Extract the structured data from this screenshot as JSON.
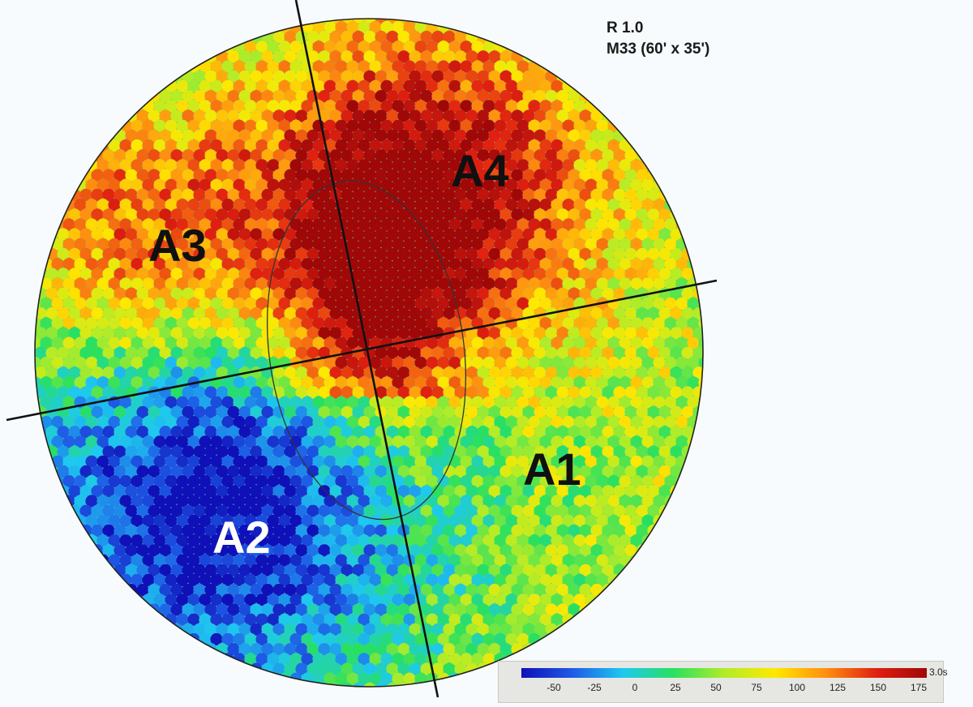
{
  "header": {
    "line1": "R 1.0",
    "line2": "M33 (60' x 35')"
  },
  "colorbar": {
    "unit_label": "3.0s",
    "min": -70,
    "max": 180,
    "ticks": [
      -50,
      -25,
      0,
      25,
      50,
      75,
      100,
      125,
      150,
      175
    ],
    "colors": [
      "#1010b8",
      "#1e5ae6",
      "#1ec8f0",
      "#28e060",
      "#b0ec28",
      "#ffe800",
      "#ff9010",
      "#e02010",
      "#a00808"
    ]
  },
  "chart_data": {
    "type": "heatmap",
    "title": "R 1.0",
    "subtitle": "M33 (60' x 35')",
    "value_range": [
      -70,
      180
    ],
    "colorbar_ticks": [
      -50,
      -25,
      0,
      25,
      50,
      75,
      100,
      125,
      150,
      175
    ],
    "colorbar_unit": "3.0s",
    "regions": [
      {
        "label": "A1",
        "approx_value": 60
      },
      {
        "label": "A2",
        "approx_value": -55
      },
      {
        "label": "A3",
        "approx_value": 135
      },
      {
        "label": "A4",
        "approx_value": 170
      }
    ],
    "divider_lines": 2,
    "inner_ellipse": true
  }
}
